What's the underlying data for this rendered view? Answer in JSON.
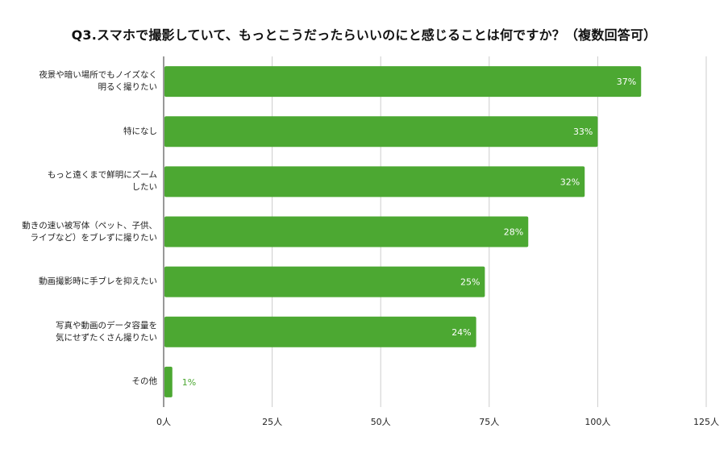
{
  "chart_data": {
    "type": "bar",
    "orientation": "horizontal",
    "title": "Q3.スマホで撮影していて、もっとこうだったらいいのにと感じることは何ですか？（複数回答可）",
    "categories": [
      [
        "夜景や暗い場所でもノイズなく",
        "明るく撮りたい"
      ],
      [
        "特になし"
      ],
      [
        "もっと遠くまで鮮明にズーム",
        "したい"
      ],
      [
        "動きの速い被写体（ペット、子供、",
        "ライブなど）をブレずに撮りたい"
      ],
      [
        "動画撮影時に手ブレを抑えたい"
      ],
      [
        "写真や動画のデータ容量を",
        "気にせずたくさん撮りたい"
      ],
      [
        "その他"
      ]
    ],
    "values": [
      110,
      100,
      97,
      84,
      74,
      72,
      2
    ],
    "data_labels": [
      "37%",
      "33%",
      "32%",
      "28%",
      "25%",
      "24%",
      "1%"
    ],
    "xlim": [
      0,
      125
    ],
    "x_ticks": [
      "0人",
      "25人",
      "50人",
      "75人",
      "100人",
      "125人"
    ],
    "grid": true,
    "bar_color": "#4ca832",
    "grid_color": "#cccccc",
    "label_inside_color": "#ffffff",
    "label_outside_color": "#4ca832"
  }
}
